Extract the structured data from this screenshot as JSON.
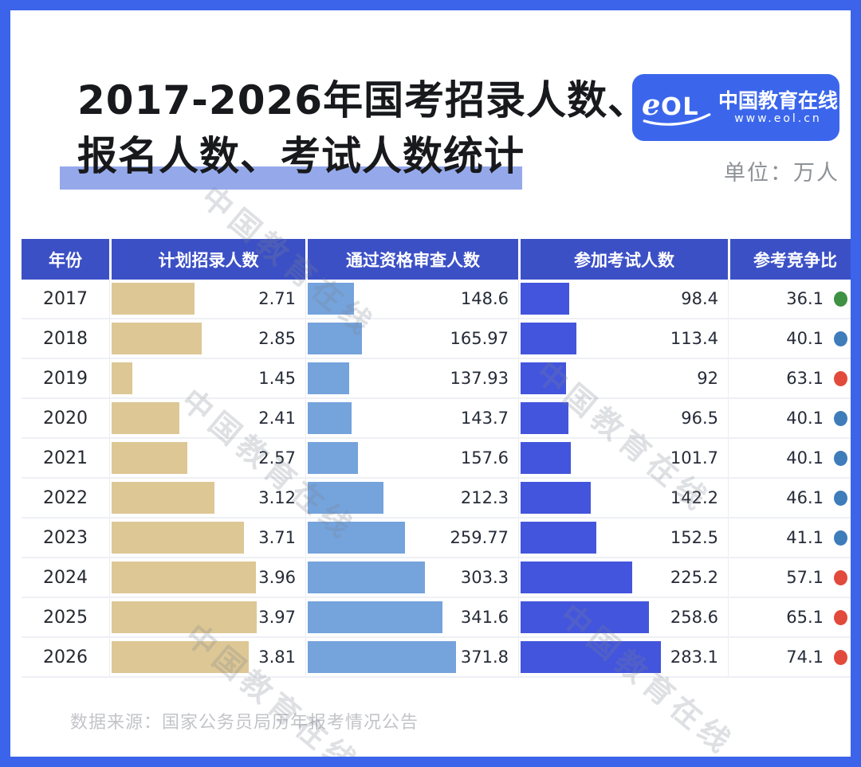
{
  "title": {
    "line1": "2017-2026年国考招录人数、",
    "line2": "报名人数、考试人数统计"
  },
  "unit_label": "单位：万人",
  "logo": {
    "brand": "中国教育在线",
    "url": "www.eol.cn",
    "mark": "eol-swoosh-logo"
  },
  "watermark": "中国教育在线",
  "footer": {
    "source": "数据来源：国家公务员局历年报考情况公告"
  },
  "colors": {
    "frame_border": "#3c64ea",
    "header_bg": "#3c50c6",
    "title_highlight": "#95a9ea",
    "logo_bg": "#3b66ec",
    "plan_bar": "#ddc795",
    "qualified_bar": "#75a3dc",
    "exam_bar": "#4355dc",
    "dot_green": "#3f9143",
    "dot_blue": "#3e7cba",
    "dot_red": "#e24a3b"
  },
  "chart_data": {
    "type": "bar",
    "orientation": "horizontal",
    "layout": "table",
    "title": "2017-2026年国考招录人数、报名人数、考试人数统计",
    "unit": "万人",
    "columns": [
      "年份",
      "计划招录人数",
      "通过资格审查人数",
      "参加考试人数",
      "参考竞争比"
    ],
    "categories": [
      "2017",
      "2018",
      "2019",
      "2020",
      "2021",
      "2022",
      "2023",
      "2024",
      "2025",
      "2026"
    ],
    "series": [
      {
        "name": "计划招录人数",
        "color": "#ddc795",
        "values": [
          2.71,
          2.85,
          1.45,
          2.41,
          2.57,
          3.12,
          3.71,
          3.96,
          3.97,
          3.81
        ]
      },
      {
        "name": "通过资格审查人数",
        "color": "#75a3dc",
        "values": [
          148.6,
          165.97,
          137.93,
          143.7,
          157.6,
          212.3,
          259.77,
          303.3,
          341.6,
          371.8
        ]
      },
      {
        "name": "参加考试人数",
        "color": "#4355dc",
        "values": [
          98.4,
          113.4,
          92,
          96.5,
          101.7,
          142.2,
          152.5,
          225.2,
          258.6,
          283.1
        ]
      },
      {
        "name": "参考竞争比",
        "values": [
          36.1,
          40.1,
          63.1,
          40.1,
          40.1,
          46.1,
          41.1,
          57.1,
          65.1,
          74.1
        ],
        "dot_colors": [
          "green",
          "blue",
          "red",
          "blue",
          "blue",
          "blue",
          "blue",
          "red",
          "red",
          "red"
        ]
      }
    ],
    "dot_palette": {
      "green": "#3f9143",
      "blue": "#3e7cba",
      "red": "#e24a3b"
    }
  }
}
